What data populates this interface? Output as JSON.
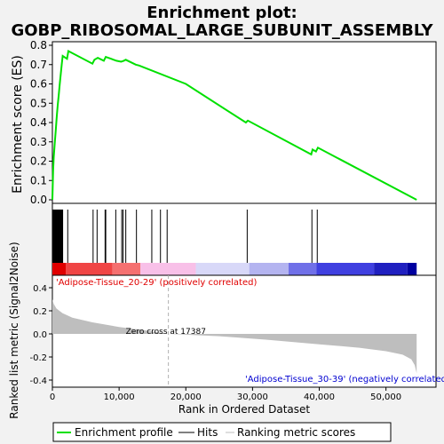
{
  "chart_data": {
    "type": "line",
    "title_line1": "Enrichment plot:",
    "title_line2": "GOBP_RIBOSOMAL_LARGE_SUBUNIT_ASSEMBLY",
    "es_ylabel": "Enrichment score (ES)",
    "es_ylim": [
      0,
      0.8
    ],
    "es_yticks": [
      "0.0",
      "0.1",
      "0.2",
      "0.3",
      "0.4",
      "0.5",
      "0.6",
      "0.7",
      "0.8"
    ],
    "es_ytick_values": [
      0,
      0.1,
      0.2,
      0.3,
      0.4,
      0.5,
      0.6,
      0.7,
      0.8
    ],
    "xlim": [
      0,
      57500
    ],
    "xticks": [
      "0",
      "10,000",
      "20,000",
      "30,000",
      "40,000",
      "50,000"
    ],
    "xtick_values": [
      0,
      10000,
      20000,
      30000,
      40000,
      50000
    ],
    "xlabel": "Rank in Ordered Dataset",
    "n_genes": 54600,
    "enrichment_profile": [
      [
        0,
        0.0
      ],
      [
        100,
        0.15
      ],
      [
        200,
        0.22
      ],
      [
        350,
        0.29
      ],
      [
        500,
        0.36
      ],
      [
        650,
        0.43
      ],
      [
        800,
        0.49
      ],
      [
        950,
        0.54
      ],
      [
        1100,
        0.6
      ],
      [
        1250,
        0.65
      ],
      [
        1400,
        0.7
      ],
      [
        1550,
        0.745
      ],
      [
        2200,
        0.73
      ],
      [
        2400,
        0.77
      ],
      [
        6000,
        0.705
      ],
      [
        6300,
        0.725
      ],
      [
        6800,
        0.735
      ],
      [
        7700,
        0.72
      ],
      [
        8000,
        0.74
      ],
      [
        8800,
        0.73
      ],
      [
        9600,
        0.72
      ],
      [
        10300,
        0.715
      ],
      [
        10700,
        0.72
      ],
      [
        11000,
        0.725
      ],
      [
        12500,
        0.7
      ],
      [
        13000,
        0.695
      ],
      [
        20000,
        0.6
      ],
      [
        29000,
        0.4
      ],
      [
        29300,
        0.41
      ],
      [
        38800,
        0.235
      ],
      [
        39000,
        0.26
      ],
      [
        39500,
        0.25
      ],
      [
        39800,
        0.27
      ],
      [
        54600,
        0.0
      ]
    ],
    "hits": [
      100,
      180,
      260,
      340,
      420,
      500,
      580,
      660,
      740,
      820,
      900,
      980,
      1060,
      1140,
      1220,
      1300,
      1380,
      1460,
      1540,
      2300,
      6100,
      6700,
      7900,
      8000,
      9500,
      10400,
      10600,
      11000,
      12600,
      14900,
      16200,
      17200,
      29200,
      38900,
      39700
    ],
    "metric_ylabel": "Ranked list metric (Signal2Noise)",
    "metric_ylim": [
      -0.45,
      0.45
    ],
    "metric_yticks": [
      "0.4",
      "0.2",
      "0.0",
      "-0.2",
      "-0.4"
    ],
    "metric_ytick_values": [
      0.4,
      0.2,
      0,
      -0.2,
      -0.4
    ],
    "metric_curve": [
      [
        0,
        0.3
      ],
      [
        200,
        0.26
      ],
      [
        600,
        0.22
      ],
      [
        1500,
        0.18
      ],
      [
        3000,
        0.14
      ],
      [
        6000,
        0.1
      ],
      [
        10000,
        0.06
      ],
      [
        14000,
        0.03
      ],
      [
        17387,
        0.0
      ],
      [
        25000,
        -0.02
      ],
      [
        32000,
        -0.05
      ],
      [
        40000,
        -0.09
      ],
      [
        46000,
        -0.12
      ],
      [
        50000,
        -0.15
      ],
      [
        52500,
        -0.18
      ],
      [
        53800,
        -0.22
      ],
      [
        54300,
        -0.27
      ],
      [
        54600,
        -0.34
      ]
    ],
    "zero_cross_rank": 17387,
    "zero_cross_label": "Zero cross at 17387",
    "pos_label": "'Adipose-Tissue_20-29' (positively correlated)",
    "neg_label": "'Adipose-Tissue_30-39' (negatively correlated)",
    "legend": [
      "Enrichment profile",
      "Hits",
      "Ranking metric scores"
    ],
    "colors": {
      "profile": "#00e000",
      "hits": "#000000",
      "metric_fill": "#bebebe",
      "pos_text": "#e00000",
      "neg_text": "#0000d0",
      "zero_line": "#b0b0b0"
    },
    "color_bar": [
      [
        0,
        2000,
        "#e00000"
      ],
      [
        2000,
        9000,
        "#f04545"
      ],
      [
        9000,
        13200,
        "#f57070"
      ],
      [
        13200,
        21500,
        "#f8c0e8"
      ],
      [
        21500,
        29500,
        "#d8d8f8"
      ],
      [
        29500,
        35400,
        "#b4b4f0"
      ],
      [
        35400,
        39600,
        "#7070e8"
      ],
      [
        39600,
        48200,
        "#4040e0"
      ],
      [
        48200,
        53200,
        "#2020c0"
      ],
      [
        53200,
        54600,
        "#0000a0"
      ]
    ]
  }
}
